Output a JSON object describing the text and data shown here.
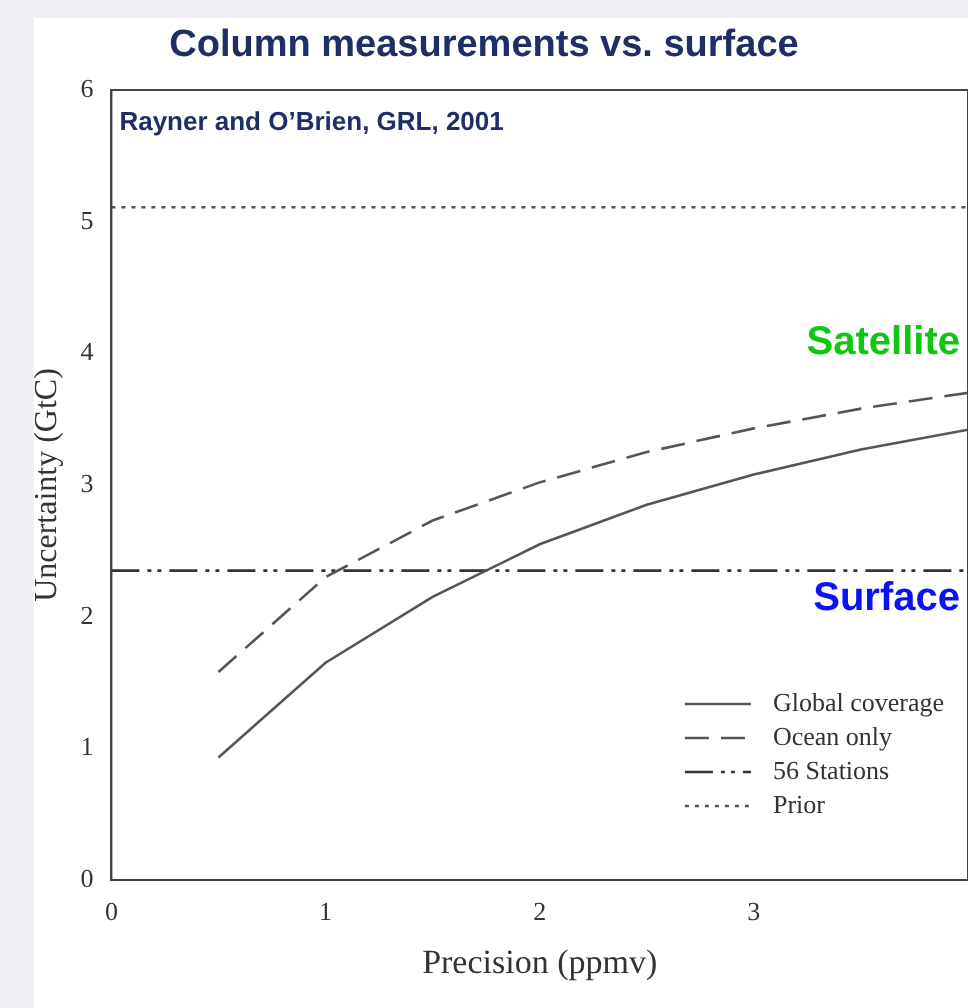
{
  "chart_data": {
    "type": "line",
    "title": "Column measurements vs. surface",
    "xlabel": "Precision (ppmv)",
    "ylabel": "Uncertainty (GtC)",
    "xlim": [
      0,
      4
    ],
    "xticks": [
      0,
      1,
      2,
      3
    ],
    "ylim": [
      0,
      6
    ],
    "yticks": [
      0,
      1,
      2,
      3,
      4,
      5,
      6
    ],
    "grid": false,
    "legend": "bottom right",
    "marker": "none",
    "series": [
      {
        "name": "Global coverage",
        "color": "#555555",
        "line_style": "solid",
        "x": [
          0.5,
          1,
          1.5,
          2,
          2.5,
          3,
          3.5,
          4
        ],
        "values": [
          0.93,
          1.65,
          2.15,
          2.55,
          2.85,
          3.08,
          3.27,
          3.42
        ]
      },
      {
        "name": "Ocean only",
        "color": "#555555",
        "line_style": "dashed",
        "x": [
          0.5,
          1,
          1.5,
          2,
          2.5,
          3,
          3.5,
          4
        ],
        "values": [
          1.58,
          2.3,
          2.73,
          3.02,
          3.25,
          3.43,
          3.58,
          3.7
        ]
      },
      {
        "name": "56 Stations",
        "color": "#333333",
        "line_style": "dashdot",
        "x": [
          0,
          4
        ],
        "values": [
          2.35,
          2.35
        ]
      },
      {
        "name": "Prior",
        "color": "#555555",
        "line_style": "dotted",
        "x": [
          0,
          4
        ],
        "values": [
          5.11,
          5.11
        ]
      }
    ],
    "annotations": [
      "Rayner and O’Brien, GRL, 2001",
      {
        "text": "Satellite",
        "x": 4,
        "y": 3.7
      },
      {
        "text": "Surface",
        "x": 4,
        "y": 2.35
      }
    ]
  }
}
